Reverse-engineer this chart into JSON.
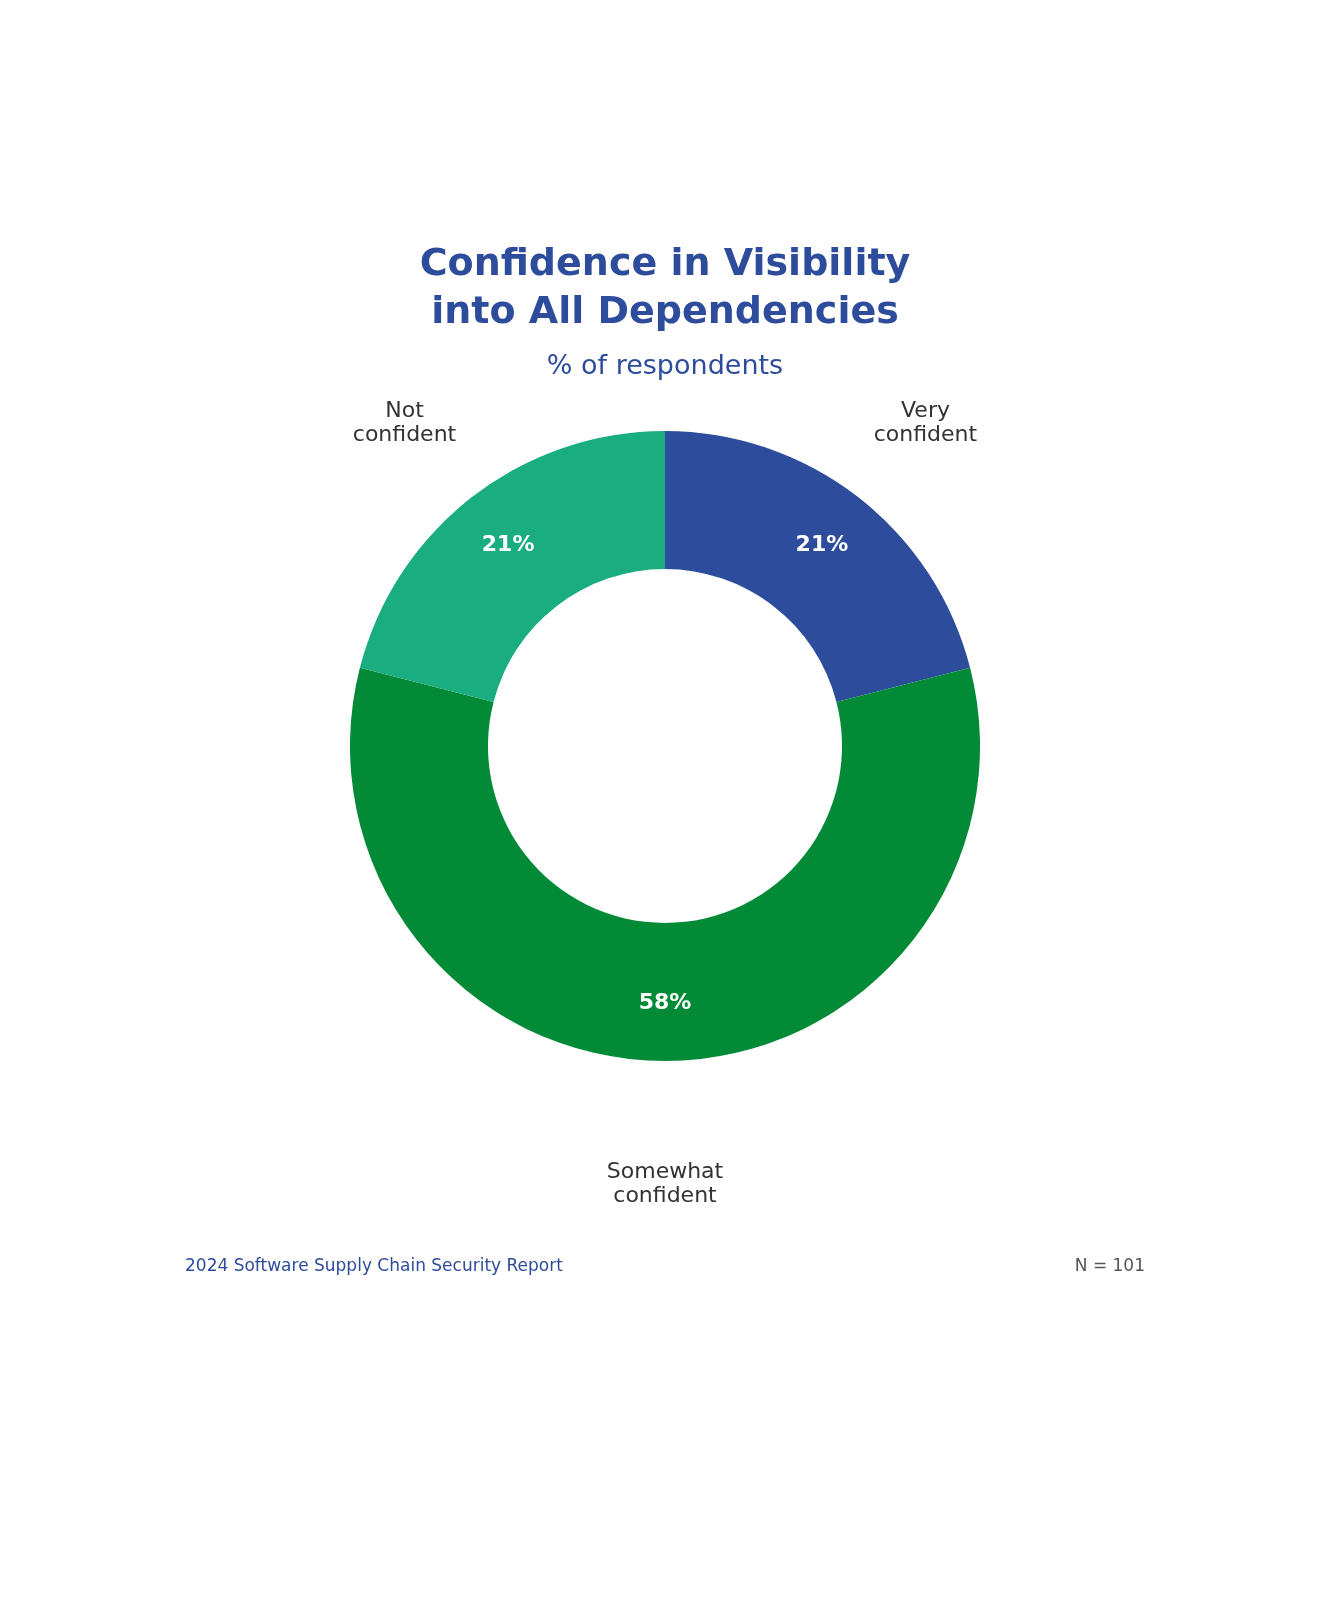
{
  "chart_data": {
    "type": "donut",
    "title": "Confidence in Visibility into All Dependencies",
    "subtitle": "% of respondents",
    "categories": [
      "Very confident",
      "Somewhat confident",
      "Not confident"
    ],
    "values": [
      21,
      58,
      21
    ],
    "colors": [
      "#2d4c9c",
      "#028a36",
      "#19ad80"
    ],
    "value_labels": [
      "21%",
      "58%",
      "21%"
    ],
    "legend": false,
    "annotations": [
      "2024 Software Supply Chain Security Report",
      "N = 101"
    ]
  }
}
